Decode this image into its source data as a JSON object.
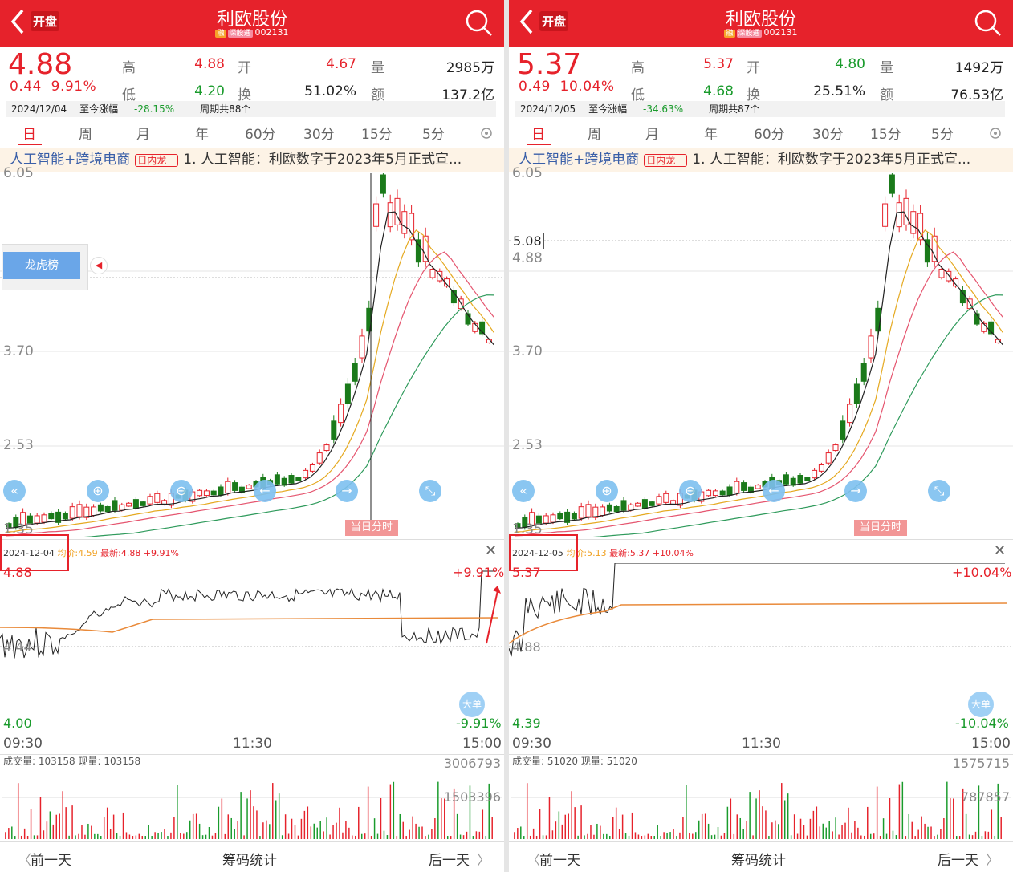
{
  "screens": [
    {
      "header": {
        "kaipan": "开盘",
        "title": "利欧股份",
        "tag_rong": "融",
        "tag_market": "深股通",
        "code": "002131"
      },
      "quote": {
        "price": "4.88",
        "change": "0.44",
        "pct": "9.91%",
        "labels": {
          "high": "高",
          "open": "开",
          "vol": "量",
          "low": "低",
          "turnover": "换",
          "amount": "额"
        },
        "high": "4.88",
        "open": "4.67",
        "vol": "2985万",
        "low": "4.20",
        "turnover": "51.02%",
        "amount": "137.2亿"
      },
      "date_bar": {
        "date": "2024/12/04",
        "since_label": "至今涨幅",
        "since": "-28.15%",
        "period": "周期共88个"
      },
      "tabs": [
        "日",
        "周",
        "月",
        "年",
        "60分",
        "30分",
        "15分",
        "5分"
      ],
      "news": {
        "prefix": "人工智能+跨境电商",
        "badge": "日内龙一",
        "text": "1. 人工智能：利欧数字于2023年5月正式宣..."
      },
      "yticks": {
        "t1": "6.05",
        "t2": "3.70",
        "t3": "2.53",
        "t4": "1.35"
      },
      "lhb": "龙虎榜",
      "price_marker": "",
      "fenshi_label": "当日分时",
      "intraday": {
        "date": "2024-12-04",
        "avg_label": "均价:4.59",
        "last_label": "最新:4.88 +9.91%",
        "top": "4.88",
        "top_pct": "+9.91%",
        "mid": "4.44",
        "bottom": "4.00",
        "bottom_pct": "-9.91%",
        "t_open": "09:30",
        "t_mid": "11:30",
        "t_close": "15:00",
        "dadan": "大单"
      },
      "volume": {
        "label": "成交量: 103158 现量: 103158",
        "max": "3006793",
        "mid": "1503396"
      },
      "footer": {
        "prev": "前一天",
        "chips": "筹码统计",
        "next": "后一天"
      }
    },
    {
      "header": {
        "kaipan": "开盘",
        "title": "利欧股份",
        "tag_rong": "融",
        "tag_market": "深股通",
        "code": "002131"
      },
      "quote": {
        "price": "5.37",
        "change": "0.49",
        "pct": "10.04%",
        "labels": {
          "high": "高",
          "open": "开",
          "vol": "量",
          "low": "低",
          "turnover": "换",
          "amount": "额"
        },
        "high": "5.37",
        "open": "4.80",
        "vol": "1492万",
        "low": "4.68",
        "turnover": "25.51%",
        "amount": "76.53亿"
      },
      "date_bar": {
        "date": "2024/12/05",
        "since_label": "至今涨幅",
        "since": "-34.63%",
        "period": "周期共87个"
      },
      "tabs": [
        "日",
        "周",
        "月",
        "年",
        "60分",
        "30分",
        "15分",
        "5分"
      ],
      "news": {
        "prefix": "人工智能+跨境电商",
        "badge": "日内龙一",
        "text": "1. 人工智能：利欧数字于2023年5月正式宣..."
      },
      "yticks": {
        "t1": "6.05",
        "t2": "3.70",
        "t3": "2.53",
        "t4": "1.35"
      },
      "lhb": "",
      "price_marker": "5.08",
      "price_marker2": "4.88",
      "fenshi_label": "当日分时",
      "intraday": {
        "date": "2024-12-05",
        "avg_label": "均价:5.13",
        "last_label": "最新:5.37 +10.04%",
        "top": "5.37",
        "top_pct": "+10.04%",
        "mid": "4.88",
        "bottom": "4.39",
        "bottom_pct": "-10.04%",
        "t_open": "09:30",
        "t_mid": "11:30",
        "t_close": "15:00",
        "dadan": "大单"
      },
      "volume": {
        "label": "成交量: 51020 现量: 51020",
        "max": "1575715",
        "mid": "787857"
      },
      "footer": {
        "prev": "前一天",
        "chips": "筹码统计",
        "next": "后一天"
      }
    }
  ]
}
